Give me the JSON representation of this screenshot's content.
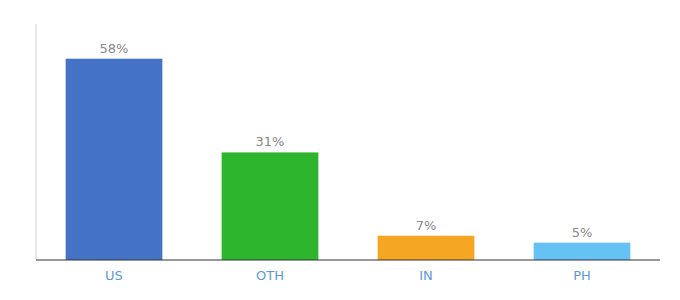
{
  "chart_data": {
    "type": "bar",
    "categories": [
      "US",
      "OTH",
      "IN",
      "PH"
    ],
    "values": [
      58,
      31,
      7,
      5
    ],
    "value_labels": [
      "58%",
      "31%",
      "7%",
      "5%"
    ],
    "colors": [
      "#4472c4",
      "#2db52d",
      "#f5a623",
      "#66c2f5"
    ],
    "ylim": [
      0,
      68
    ],
    "data_labels": true,
    "tick_labels": "x",
    "grid": false
  }
}
